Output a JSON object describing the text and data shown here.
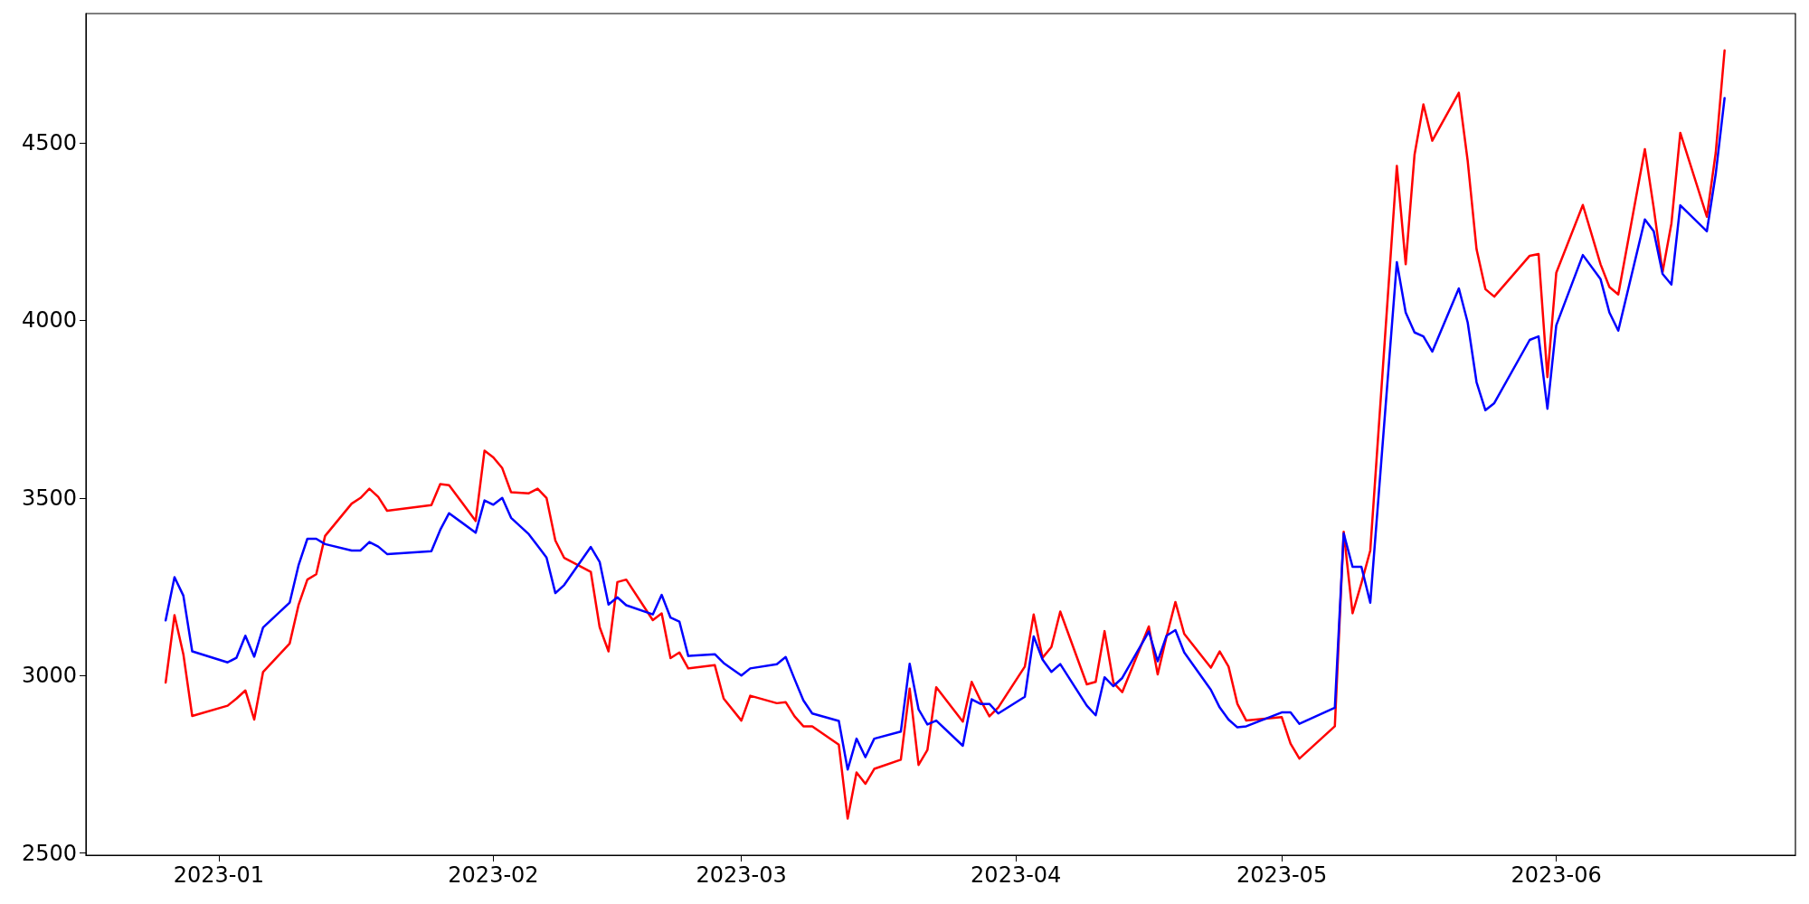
{
  "chart_data": {
    "type": "line",
    "x": [
      "2022-12-26",
      "2022-12-27",
      "2022-12-28",
      "2022-12-29",
      "2023-01-02",
      "2023-01-03",
      "2023-01-04",
      "2023-01-05",
      "2023-01-06",
      "2023-01-09",
      "2023-01-10",
      "2023-01-11",
      "2023-01-12",
      "2023-01-13",
      "2023-01-16",
      "2023-01-17",
      "2023-01-18",
      "2023-01-19",
      "2023-01-20",
      "2023-01-25",
      "2023-01-26",
      "2023-01-27",
      "2023-01-30",
      "2023-01-31",
      "2023-02-01",
      "2023-02-02",
      "2023-02-03",
      "2023-02-05",
      "2023-02-06",
      "2023-02-07",
      "2023-02-08",
      "2023-02-09",
      "2023-02-12",
      "2023-02-13",
      "2023-02-14",
      "2023-02-15",
      "2023-02-16",
      "2023-02-19",
      "2023-02-20",
      "2023-02-21",
      "2023-02-22",
      "2023-02-23",
      "2023-02-26",
      "2023-02-27",
      "2023-03-01",
      "2023-03-02",
      "2023-03-05",
      "2023-03-06",
      "2023-03-07",
      "2023-03-08",
      "2023-03-09",
      "2023-03-12",
      "2023-03-13",
      "2023-03-14",
      "2023-03-15",
      "2023-03-16",
      "2023-03-19",
      "2023-03-20",
      "2023-03-21",
      "2023-03-22",
      "2023-03-23",
      "2023-03-26",
      "2023-03-27",
      "2023-03-28",
      "2023-03-29",
      "2023-03-30",
      "2023-04-02",
      "2023-04-03",
      "2023-04-04",
      "2023-04-05",
      "2023-04-06",
      "2023-04-09",
      "2023-04-10",
      "2023-04-11",
      "2023-04-12",
      "2023-04-13",
      "2023-04-16",
      "2023-04-17",
      "2023-04-18",
      "2023-04-19",
      "2023-04-20",
      "2023-04-23",
      "2023-04-24",
      "2023-04-25",
      "2023-04-26",
      "2023-04-27",
      "2023-05-01",
      "2023-05-02",
      "2023-05-03",
      "2023-05-07",
      "2023-05-08",
      "2023-05-09",
      "2023-05-10",
      "2023-05-11",
      "2023-05-14",
      "2023-05-15",
      "2023-05-16",
      "2023-05-17",
      "2023-05-18",
      "2023-05-21",
      "2023-05-22",
      "2023-05-23",
      "2023-05-24",
      "2023-05-25",
      "2023-05-29",
      "2023-05-30",
      "2023-05-31",
      "2023-06-01",
      "2023-06-04",
      "2023-06-06",
      "2023-06-07",
      "2023-06-08",
      "2023-06-11",
      "2023-06-12",
      "2023-06-13",
      "2023-06-14",
      "2023-06-15",
      "2023-06-18",
      "2023-06-19",
      "2023-06-20"
    ],
    "series": [
      {
        "color": "#ff0000",
        "values": [
          2980,
          3170,
          3060,
          2886,
          2915,
          2935,
          2958,
          2876,
          3010,
          3090,
          3198,
          3270,
          3285,
          3393,
          3484,
          3500,
          3526,
          3503,
          3464,
          3480,
          3539,
          3536,
          3435,
          3633,
          3614,
          3584,
          3516,
          3513,
          3526,
          3500,
          3380,
          3331,
          3292,
          3136,
          3068,
          3263,
          3270,
          3156,
          3175,
          3049,
          3065,
          3020,
          3029,
          2935,
          2873,
          2943,
          2922,
          2925,
          2885,
          2857,
          2857,
          2805,
          2597,
          2727,
          2695,
          2737,
          2763,
          2963,
          2748,
          2790,
          2967,
          2870,
          2982,
          2930,
          2885,
          2910,
          3025,
          3172,
          3050,
          3080,
          3180,
          2975,
          2982,
          3125,
          2980,
          2953,
          3138,
          3003,
          3110,
          3207,
          3117,
          3022,
          3068,
          3025,
          2920,
          2873,
          2883,
          2808,
          2766,
          2857,
          3405,
          3175,
          3260,
          3352,
          4435,
          4158,
          4467,
          4608,
          4506,
          4641,
          4449,
          4200,
          4088,
          4067,
          4182,
          4187,
          3840,
          4134,
          4325,
          4158,
          4094,
          4073,
          4482,
          4317,
          4136,
          4273,
          4528,
          4292,
          4472,
          4760
        ]
      },
      {
        "color": "#0000ff",
        "values": [
          3155,
          3277,
          3225,
          3068,
          3037,
          3050,
          3112,
          3053,
          3135,
          3205,
          3310,
          3385,
          3385,
          3370,
          3352,
          3352,
          3376,
          3363,
          3342,
          3350,
          3410,
          3457,
          3402,
          3493,
          3481,
          3500,
          3444,
          3398,
          3365,
          3332,
          3232,
          3255,
          3362,
          3320,
          3200,
          3220,
          3198,
          3172,
          3227,
          3163,
          3152,
          3055,
          3060,
          3035,
          3000,
          3020,
          3032,
          3052,
          2990,
          2930,
          2893,
          2872,
          2735,
          2822,
          2770,
          2822,
          2842,
          3033,
          2905,
          2862,
          2873,
          2802,
          2933,
          2920,
          2920,
          2893,
          2940,
          3110,
          3045,
          3010,
          3032,
          2915,
          2888,
          2995,
          2970,
          2993,
          3124,
          3040,
          3112,
          3128,
          3065,
          2960,
          2910,
          2876,
          2854,
          2857,
          2896,
          2896,
          2864,
          2909,
          3400,
          3306,
          3306,
          3205,
          4164,
          4022,
          3966,
          3955,
          3912,
          4090,
          3994,
          3826,
          3747,
          3767,
          3945,
          3955,
          3751,
          3986,
          4184,
          4116,
          4022,
          3971,
          4284,
          4251,
          4131,
          4101,
          4324,
          4251,
          4412,
          4626
        ]
      }
    ],
    "xlim": [
      "2022-12-17",
      "2023-06-28"
    ],
    "xticks": [
      "2023-01",
      "2023-02",
      "2023-03",
      "2023-04",
      "2023-05",
      "2023-06"
    ],
    "ylim": [
      2494,
      4864
    ],
    "yticks": [
      2500,
      3000,
      3500,
      4000,
      4500
    ],
    "grid": false,
    "marker": "none",
    "line_style": "solid"
  }
}
